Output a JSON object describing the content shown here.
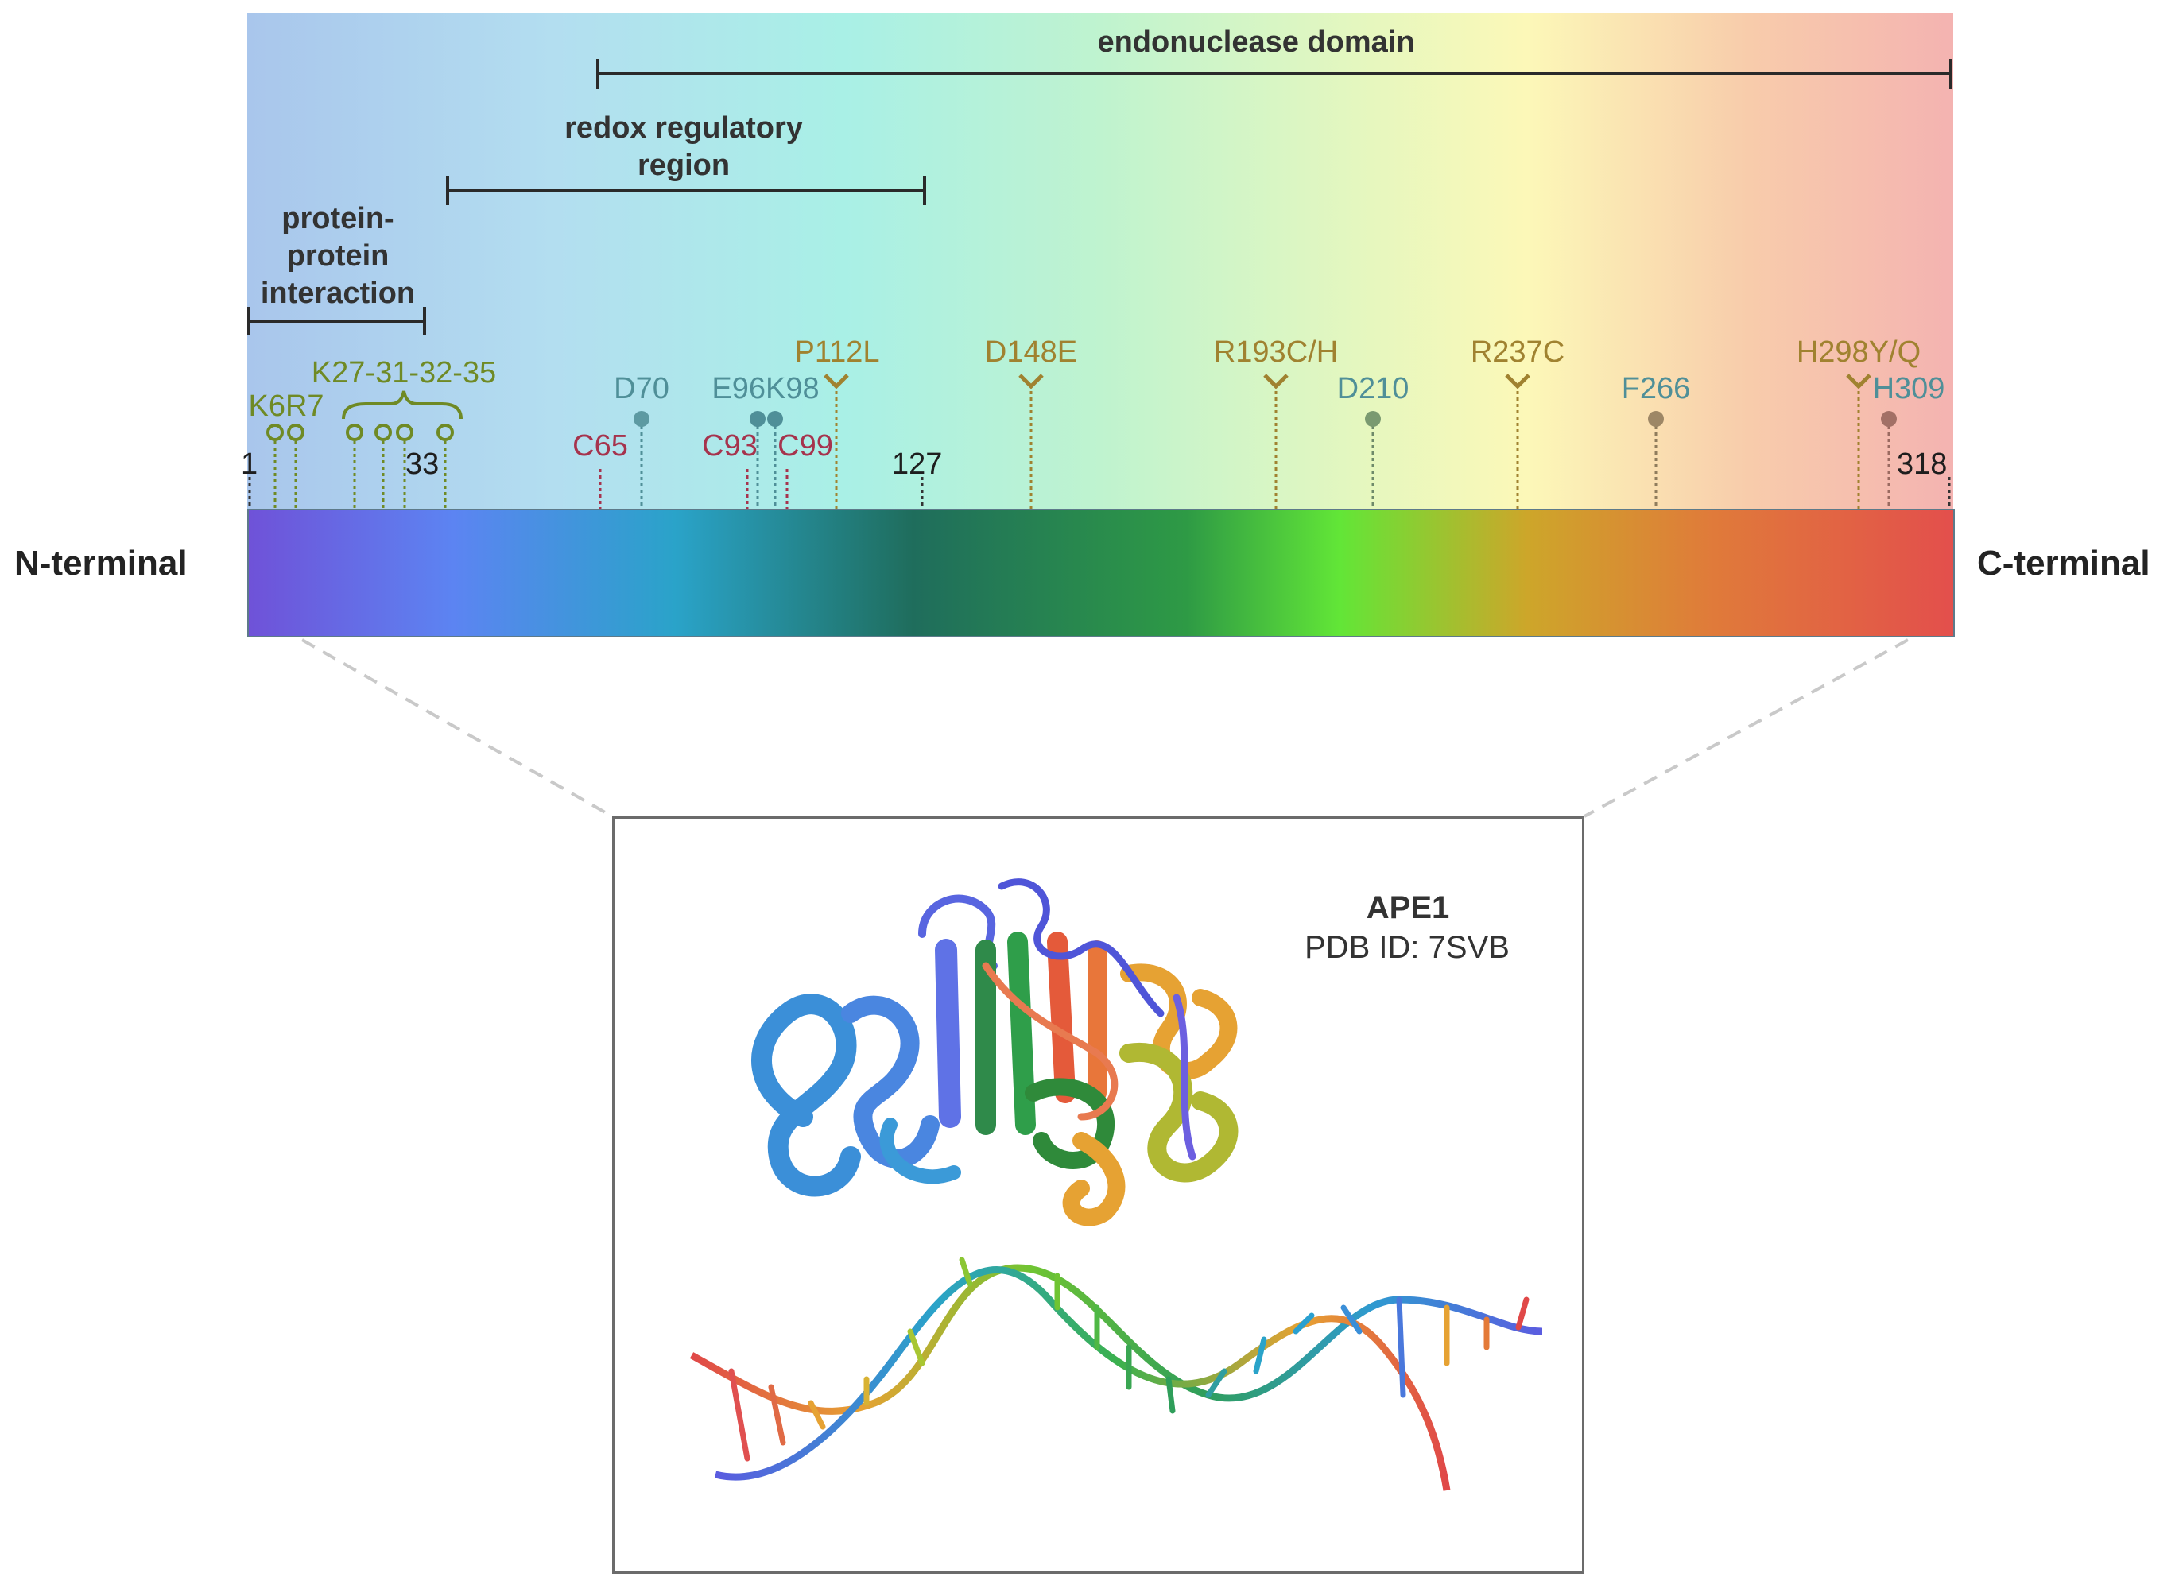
{
  "termini": {
    "n": "N-terminal",
    "c": "C-terminal"
  },
  "domains": {
    "ppi": "protein-\nprotein\ninteraction",
    "redox": "redox regulatory\nregion",
    "endo": "endonuclease domain"
  },
  "positions": {
    "p1": "1",
    "p33": "33",
    "p127": "127",
    "p318": "318"
  },
  "sites": {
    "k6r7": "K6R7",
    "k27": "K27-31-32-35",
    "c65": "C65",
    "d70": "D70",
    "c93": "C93",
    "e96k98": "E96K98",
    "c99": "C99",
    "p112l": "P112L",
    "d148e": "D148E",
    "r193": "R193C/H",
    "d210": "D210",
    "r237c": "R237C",
    "f266": "F266",
    "h298": "H298Y/Q",
    "h309": "H309"
  },
  "colors": {
    "acetylation": "#6f8a25",
    "cysteine": "#a6334d",
    "active_site": "#4f8f98",
    "variant": "#a08230"
  },
  "structure": {
    "protein": "APE1",
    "pdb": "PDB ID: 7SVB"
  }
}
